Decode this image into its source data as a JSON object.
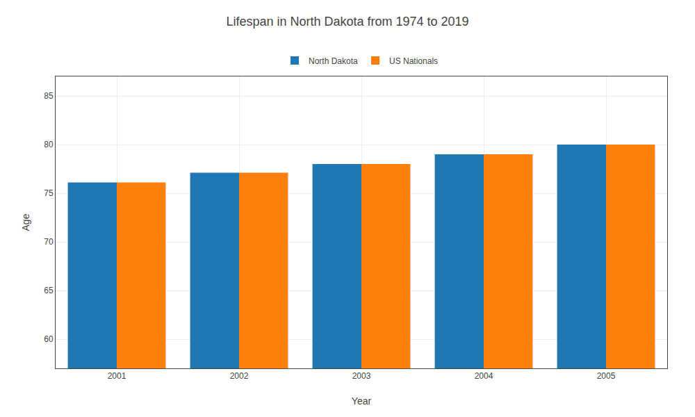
{
  "chart_data": {
    "type": "bar",
    "title": "Lifespan in North Dakota from 1974 to 2019",
    "x_label": "Year",
    "y_label": "Age",
    "categories": [
      "2001",
      "2002",
      "2003",
      "2004",
      "2005"
    ],
    "series": [
      {
        "name": "North Dakota",
        "values": [
          76.1,
          77.1,
          78.0,
          79.0,
          80.0
        ]
      },
      {
        "name": "US Nationals",
        "values": [
          76.1,
          77.1,
          78.0,
          79.0,
          80.0
        ]
      }
    ],
    "ylim": [
      57,
      87
    ],
    "yticks": [
      60,
      65,
      70,
      75,
      80,
      85
    ],
    "grid": true,
    "legend": "top"
  }
}
